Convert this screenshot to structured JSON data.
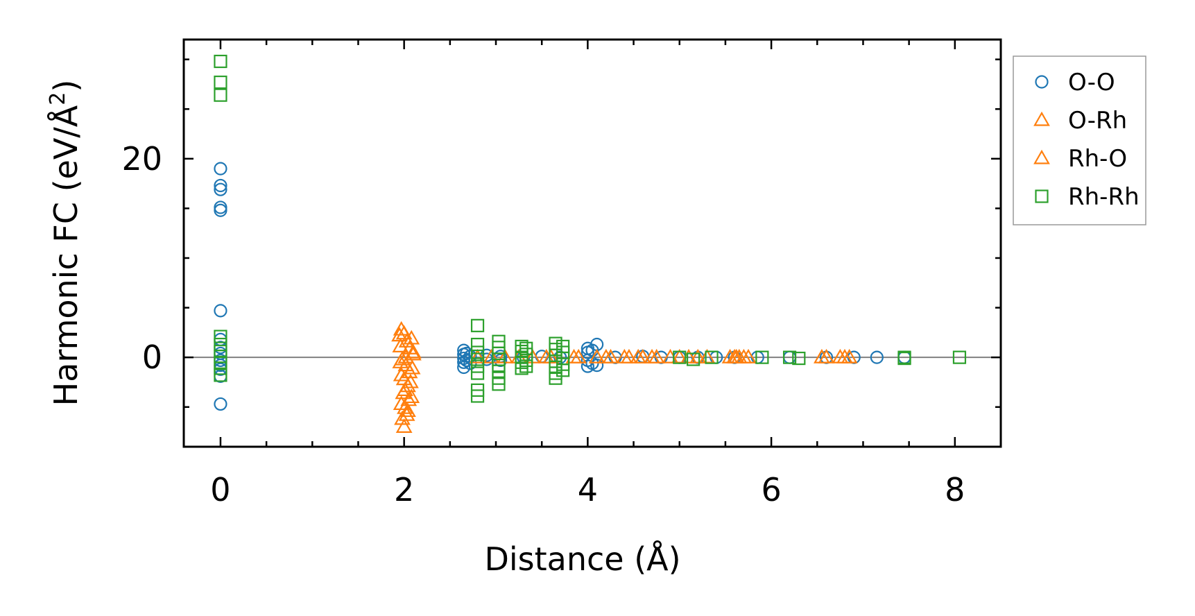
{
  "chart_data": {
    "type": "scatter",
    "xlabel": "Distance (Å)",
    "ylabel": "Harmonic FC (eV/Å",
    "ylabel_superscript": "2",
    "ylabel_close": ")",
    "xlim": [
      -0.4,
      8.5
    ],
    "ylim": [
      -9,
      32
    ],
    "x_ticks": [
      0,
      2,
      4,
      6,
      8
    ],
    "x_tick_labels": [
      "0",
      "2",
      "4",
      "6",
      "8"
    ],
    "x_minor_ticks": [
      0.5,
      1,
      1.5,
      2.5,
      3,
      3.5,
      4.5,
      5,
      5.5,
      6.5,
      7,
      7.5
    ],
    "y_ticks": [
      0,
      20
    ],
    "y_tick_labels": [
      "0",
      "20"
    ],
    "y_minor_ticks": [
      -5,
      5,
      10,
      15,
      25,
      30
    ],
    "zero_line": 0,
    "grid": false,
    "legend_position": "outside-right-top",
    "series": [
      {
        "name": "O-O",
        "marker": "circle",
        "color": "#1f77b4",
        "points": [
          [
            0,
            19.0
          ],
          [
            0,
            17.3
          ],
          [
            0,
            16.9
          ],
          [
            0,
            15.1
          ],
          [
            0,
            14.8
          ],
          [
            0,
            4.7
          ],
          [
            0,
            1.8
          ],
          [
            0,
            1.0
          ],
          [
            0,
            0.4
          ],
          [
            0,
            -0.3
          ],
          [
            0,
            -0.8
          ],
          [
            0,
            -1.2
          ],
          [
            0,
            -1.9
          ],
          [
            0,
            -4.7
          ],
          [
            2.65,
            0.7
          ],
          [
            2.65,
            0.3
          ],
          [
            2.65,
            -0.1
          ],
          [
            2.65,
            -0.5
          ],
          [
            2.65,
            -1.0
          ],
          [
            2.68,
            0.4
          ],
          [
            2.68,
            -0.3
          ],
          [
            2.72,
            0.1
          ],
          [
            2.72,
            -0.6
          ],
          [
            2.9,
            0.2
          ],
          [
            2.9,
            -0.2
          ],
          [
            3.05,
            0.1
          ],
          [
            3.05,
            -0.3
          ],
          [
            3.3,
            0.0
          ],
          [
            3.5,
            0.1
          ],
          [
            3.7,
            0.0
          ],
          [
            4.0,
            0.9
          ],
          [
            4.0,
            0.5
          ],
          [
            4.0,
            -0.3
          ],
          [
            4.0,
            -0.9
          ],
          [
            4.05,
            0.7
          ],
          [
            4.05,
            -0.6
          ],
          [
            4.1,
            1.3
          ],
          [
            4.1,
            -0.8
          ],
          [
            4.3,
            0.0
          ],
          [
            4.6,
            0.1
          ],
          [
            4.8,
            0.0
          ],
          [
            5.0,
            0.0
          ],
          [
            5.2,
            0.0
          ],
          [
            5.4,
            0.0
          ],
          [
            5.6,
            0.0
          ],
          [
            5.85,
            0.0
          ],
          [
            6.2,
            0.0
          ],
          [
            6.6,
            0.0
          ],
          [
            6.9,
            0.0
          ],
          [
            7.15,
            0.0
          ],
          [
            7.45,
            0.0
          ]
        ]
      },
      {
        "name": "O-Rh",
        "marker": "triangle",
        "color": "#ff7f0e",
        "points": [
          [
            1.97,
            2.8
          ],
          [
            2.0,
            2.4
          ],
          [
            2.03,
            1.6
          ],
          [
            2.06,
            0.9
          ],
          [
            2.1,
            0.3
          ],
          [
            1.98,
            -0.2
          ],
          [
            2.02,
            -0.8
          ],
          [
            2.06,
            -1.5
          ],
          [
            2.0,
            -2.2
          ],
          [
            2.04,
            -2.9
          ],
          [
            1.99,
            -3.6
          ],
          [
            2.05,
            -4.3
          ],
          [
            2.01,
            -5.1
          ],
          [
            2.03,
            -5.8
          ],
          [
            2.0,
            -7.0
          ],
          [
            2.8,
            0.0
          ],
          [
            3.1,
            0.0
          ],
          [
            3.4,
            0.0
          ],
          [
            3.6,
            0.0
          ],
          [
            3.9,
            0.0
          ],
          [
            4.1,
            0.0
          ],
          [
            4.25,
            0.0
          ],
          [
            4.45,
            0.0
          ],
          [
            4.6,
            0.0
          ],
          [
            4.75,
            0.0
          ],
          [
            4.9,
            0.0
          ],
          [
            5.1,
            0.0
          ],
          [
            5.3,
            0.0
          ],
          [
            5.55,
            0.0
          ],
          [
            5.62,
            0.0
          ],
          [
            5.7,
            0.0
          ],
          [
            6.6,
            0.0
          ],
          [
            6.75,
            0.0
          ],
          [
            6.85,
            0.0
          ]
        ]
      },
      {
        "name": "Rh-O",
        "marker": "triangle",
        "color": "#ff7f0e",
        "points": [
          [
            1.95,
            2.2
          ],
          [
            2.08,
            1.9
          ],
          [
            1.96,
            1.1
          ],
          [
            2.1,
            0.5
          ],
          [
            2.02,
            0.0
          ],
          [
            1.96,
            -0.5
          ],
          [
            2.09,
            -1.1
          ],
          [
            1.97,
            -1.8
          ],
          [
            2.07,
            -2.5
          ],
          [
            2.01,
            -3.3
          ],
          [
            2.08,
            -4.0
          ],
          [
            1.97,
            -4.7
          ],
          [
            2.04,
            -5.4
          ],
          [
            1.98,
            -6.2
          ],
          [
            2.95,
            0.0
          ],
          [
            3.25,
            0.0
          ],
          [
            3.55,
            0.0
          ],
          [
            3.85,
            0.0
          ],
          [
            4.2,
            0.0
          ],
          [
            4.4,
            0.0
          ],
          [
            4.55,
            0.0
          ],
          [
            4.7,
            0.0
          ],
          [
            5.0,
            0.0
          ],
          [
            5.2,
            0.0
          ],
          [
            5.6,
            0.0
          ],
          [
            5.65,
            0.0
          ],
          [
            5.75,
            0.0
          ],
          [
            6.55,
            0.0
          ],
          [
            6.8,
            0.0
          ]
        ]
      },
      {
        "name": "Rh-Rh",
        "marker": "square",
        "color": "#2ca02c",
        "points": [
          [
            0,
            29.8
          ],
          [
            0,
            27.7
          ],
          [
            0,
            26.4
          ],
          [
            0,
            2.1
          ],
          [
            0,
            1.3
          ],
          [
            0,
            0.6
          ],
          [
            0,
            0.1
          ],
          [
            0,
            -0.5
          ],
          [
            0,
            -1.1
          ],
          [
            0,
            -1.8
          ],
          [
            2.8,
            3.2
          ],
          [
            2.8,
            1.3
          ],
          [
            2.8,
            0.5
          ],
          [
            2.8,
            -0.2
          ],
          [
            2.8,
            -0.9
          ],
          [
            2.8,
            -1.6
          ],
          [
            2.8,
            -3.3
          ],
          [
            2.8,
            -3.9
          ],
          [
            3.03,
            1.6
          ],
          [
            3.03,
            1.0
          ],
          [
            3.03,
            0.4
          ],
          [
            3.03,
            -0.2
          ],
          [
            3.03,
            -0.8
          ],
          [
            3.03,
            -1.4
          ],
          [
            3.03,
            -2.1
          ],
          [
            3.03,
            -2.7
          ],
          [
            3.28,
            1.1
          ],
          [
            3.28,
            0.6
          ],
          [
            3.28,
            0.0
          ],
          [
            3.28,
            -0.5
          ],
          [
            3.28,
            -1.1
          ],
          [
            3.33,
            0.9
          ],
          [
            3.33,
            0.3
          ],
          [
            3.33,
            -0.3
          ],
          [
            3.33,
            -0.9
          ],
          [
            3.65,
            1.4
          ],
          [
            3.65,
            0.8
          ],
          [
            3.65,
            0.2
          ],
          [
            3.65,
            -0.4
          ],
          [
            3.65,
            -1.0
          ],
          [
            3.65,
            -1.6
          ],
          [
            3.65,
            -2.1
          ],
          [
            3.73,
            1.1
          ],
          [
            3.73,
            0.5
          ],
          [
            3.73,
            -0.1
          ],
          [
            3.73,
            -0.7
          ],
          [
            3.73,
            -1.3
          ],
          [
            5.0,
            0.0
          ],
          [
            5.15,
            -0.2
          ],
          [
            5.35,
            0.0
          ],
          [
            5.9,
            0.0
          ],
          [
            6.2,
            0.0
          ],
          [
            6.3,
            -0.1
          ],
          [
            7.45,
            0.0
          ],
          [
            7.45,
            -0.1
          ],
          [
            8.05,
            0.0
          ]
        ]
      }
    ]
  }
}
